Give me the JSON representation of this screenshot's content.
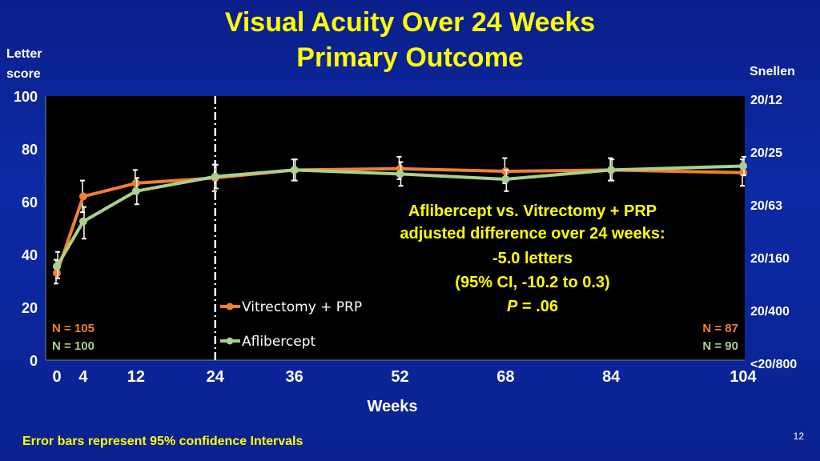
{
  "title_line1": "Visual Acuity Over 24 Weeks",
  "title_line2": "Primary Outcome",
  "left_axis_title_line1": "Letter",
  "left_axis_title_line2": "score",
  "right_axis_title": "Snellen",
  "footnote": "Error bars represent 95% confidence Intervals",
  "slide_number": "12",
  "colors": {
    "background": "#0c2aa6",
    "title": "#ffff00",
    "plot_bg": "#000000",
    "vitrectomy": "#f08030",
    "aflibercept": "#a9d08e"
  },
  "chart_data": {
    "type": "line",
    "xlabel": "Weeks",
    "ylabel": "Letter score",
    "xlim": [
      0,
      104
    ],
    "ylim": [
      0,
      100
    ],
    "x_ticks": [
      0,
      4,
      12,
      24,
      36,
      52,
      68,
      84,
      104
    ],
    "y_ticks": [
      0,
      20,
      40,
      60,
      80,
      100
    ],
    "right_axis_label": "Snellen",
    "right_axis_ticks": [
      {
        "y": 100,
        "label": "20/12"
      },
      {
        "y": 80,
        "label": "20/25"
      },
      {
        "y": 60,
        "label": "20/63"
      },
      {
        "y": 40,
        "label": "20/160"
      },
      {
        "y": 20,
        "label": "20/400"
      },
      {
        "y": 0,
        "label": "<20/800"
      }
    ],
    "vertical_reference_line_x": 24,
    "grid": false,
    "legend_placement": "bottom-center",
    "series": [
      {
        "name": "Vitrectomy + PRP",
        "color": "#f08030",
        "x": [
          0,
          4,
          12,
          24,
          36,
          52,
          68,
          84,
          104
        ],
        "y": [
          33,
          62,
          67,
          69,
          72,
          72.5,
          71.5,
          72,
          71
        ],
        "ci_low": [
          29,
          56,
          63,
          64,
          68,
          68.5,
          67,
          68,
          66
        ],
        "ci_high": [
          38,
          68,
          72,
          74,
          76,
          77,
          76.5,
          76.5,
          76
        ]
      },
      {
        "name": "Aflibercept",
        "color": "#a9d08e",
        "x": [
          0,
          4,
          12,
          24,
          36,
          52,
          68,
          84,
          104
        ],
        "y": [
          35.5,
          52.5,
          64,
          69.5,
          72,
          70.5,
          68.5,
          72,
          73.5
        ],
        "ci_low": [
          31,
          46,
          59,
          65,
          68,
          66,
          64,
          68,
          70
        ],
        "ci_high": [
          41,
          58,
          69,
          74,
          76,
          75,
          72,
          76,
          77
        ]
      }
    ],
    "annotation_lines": [
      "Aflibercept vs. Vitrectomy + PRP",
      "adjusted difference over 24 weeks:",
      "-5.0 letters",
      "(95% CI, -10.2 to 0.3)"
    ],
    "annotation_p_label": "P",
    "annotation_p_value": " = .06",
    "n_labels": {
      "left": [
        {
          "text": "N = 105",
          "color": "#f08030"
        },
        {
          "text": "N = 100",
          "color": "#a9d08e"
        }
      ],
      "right": [
        {
          "text": "N = 87",
          "color": "#f08030"
        },
        {
          "text": "N = 90",
          "color": "#a9d08e"
        }
      ]
    }
  }
}
